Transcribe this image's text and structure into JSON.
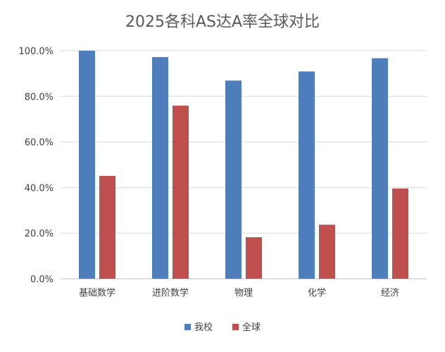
{
  "chart_data": {
    "type": "bar",
    "title": "2025各科AS达A率全球对比",
    "categories": [
      "基础数学",
      "进阶数学",
      "物理",
      "化学",
      "经济"
    ],
    "series": [
      {
        "name": "我校",
        "color": "#4F7EBD",
        "values": [
          100.0,
          97.2,
          86.9,
          90.9,
          96.7
        ]
      },
      {
        "name": "全球",
        "color": "#C0504D",
        "values": [
          45.1,
          75.9,
          18.2,
          23.7,
          39.6
        ]
      }
    ],
    "ylim": [
      0,
      100
    ],
    "yticks": [
      0,
      20,
      40,
      60,
      80,
      100
    ],
    "ytick_labels": [
      "0.0%",
      "20.0%",
      "40.0%",
      "60.0%",
      "80.0%",
      "100.0%"
    ],
    "grid": true,
    "legend_position": "bottom",
    "xlabel": "",
    "ylabel": ""
  }
}
